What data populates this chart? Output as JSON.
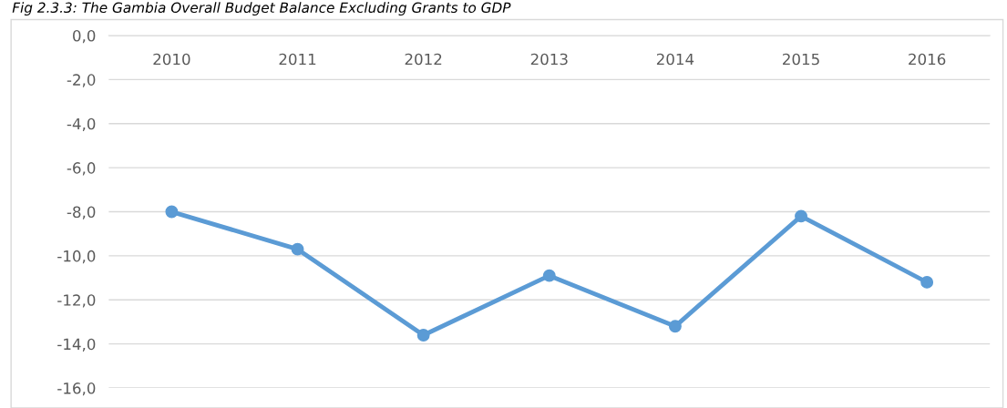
{
  "chart_data": {
    "type": "line",
    "title": "Fig 2.3.3: The Gambia Overall Budget Balance Excluding Grants to GDP",
    "categories": [
      "2010",
      "2011",
      "2012",
      "2013",
      "2014",
      "2015",
      "2016"
    ],
    "series": [
      {
        "color": "#5b9bd5",
        "values": [
          -8.0,
          -9.7,
          -13.6,
          -10.9,
          -13.2,
          -8.2,
          -11.2
        ]
      }
    ],
    "ylim": [
      -16,
      0
    ],
    "yticks": [
      {
        "value": 0,
        "label": "0,0"
      },
      {
        "value": -2,
        "label": "-2,0"
      },
      {
        "value": -4,
        "label": "-4,0"
      },
      {
        "value": -6,
        "label": "-6,0"
      },
      {
        "value": -8,
        "label": "-8,0"
      },
      {
        "value": -10,
        "label": "-10,0"
      },
      {
        "value": -12,
        "label": "-12,0"
      },
      {
        "value": -14,
        "label": "-14,0"
      },
      {
        "value": -16,
        "label": "-16,0"
      }
    ],
    "grid": "y",
    "marker": "circle",
    "line_style": "solid",
    "legend": false
  }
}
